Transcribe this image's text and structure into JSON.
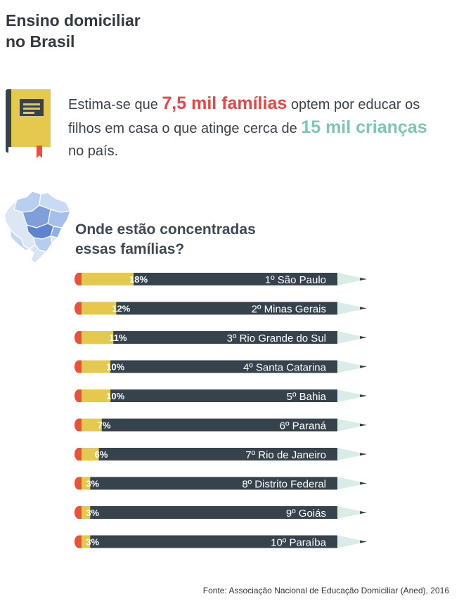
{
  "title": {
    "line1": "Ensino domiciliar",
    "line2": "no Brasil"
  },
  "intro": {
    "part1": "Estima-se que ",
    "highlight1": "7,5 mil famílias",
    "part2": " optem por educar os filhos em casa o que atinge cerca de ",
    "highlight2": "15 mil crianças",
    "part3": " no país."
  },
  "subtitle": {
    "line1": "Onde estão concentradas",
    "line2": "essas famílias?"
  },
  "colors": {
    "red": "#e94545",
    "teal": "#7cc7b2",
    "pencil_body": "#36434d",
    "pencil_yellow": "#e4c94e",
    "pencil_tip": "#d9ece6",
    "eraser": "#e8523d"
  },
  "chart_data": {
    "type": "bar",
    "title": "Onde estão concentradas essas famílias?",
    "categories": [
      "1º São Paulo",
      "2º Minas Gerais",
      "3º Rio Grande do Sul",
      "4º Santa Catarina",
      "5º Bahia",
      "6º Paraná",
      "7º Rio de Janeiro",
      "8º Distrito Federal",
      "9º Goiás",
      "10º Paraíba"
    ],
    "values": [
      18,
      12,
      11,
      10,
      10,
      7,
      6,
      3,
      3,
      3
    ],
    "value_labels": [
      "18%",
      "12%",
      "11%",
      "10%",
      "10%",
      "7%",
      "6%",
      "3%",
      "3%",
      "3%"
    ],
    "unit": "%",
    "xlim": [
      0,
      100
    ]
  },
  "source": "Fonte: Associação Nacional de Educação Domiciliar (Aned), 2016"
}
